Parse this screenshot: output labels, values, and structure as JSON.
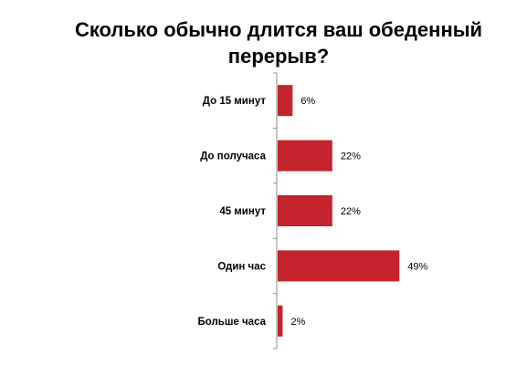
{
  "chart_data": {
    "type": "bar",
    "orientation": "horizontal",
    "title_lines": [
      "Сколько обычно длится ваш обеденный",
      "перерыв?"
    ],
    "categories": [
      "До 15 минут",
      "До получаса",
      "45 минут",
      "Один час",
      "Больше часа"
    ],
    "values": [
      6,
      22,
      22,
      49,
      2
    ],
    "value_labels": [
      "6%",
      "22%",
      "22%",
      "49%",
      "2%"
    ],
    "unit": "%",
    "xlim": [
      0,
      60
    ],
    "grid": false,
    "legend": "none",
    "bar_color": "#C4242B"
  }
}
